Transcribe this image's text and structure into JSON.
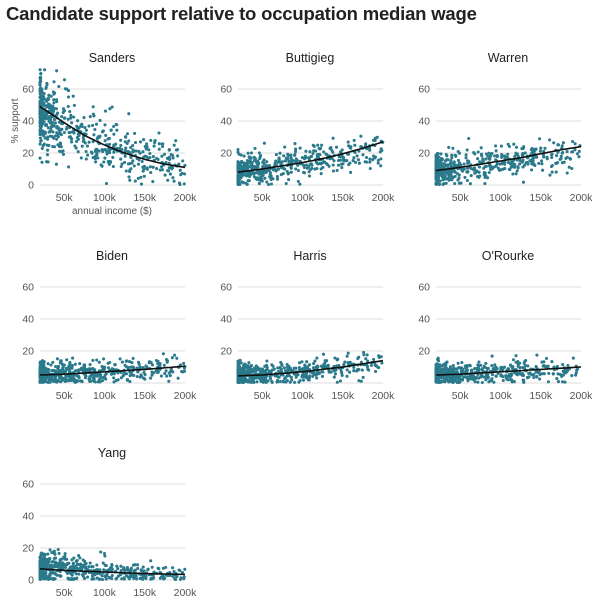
{
  "title": "Candidate support relative to occupation median wage",
  "colors": {
    "dots": "#2a7a8c",
    "trend_line": "#111111",
    "grid": "#dcdcdc"
  },
  "chart_data": [
    {
      "type": "scatter",
      "title": "Sanders",
      "xlabel": "annual income ($)",
      "ylabel": "% support",
      "xlim": [
        20000,
        200000
      ],
      "ylim": [
        0,
        60
      ],
      "xticks": [
        "50k",
        "100k",
        "150k",
        "200k"
      ],
      "yticks": [
        "0",
        "20",
        "40",
        "60"
      ],
      "trend": [
        [
          20000,
          49
        ],
        [
          50000,
          39
        ],
        [
          75000,
          31
        ],
        [
          100000,
          25
        ],
        [
          125000,
          20
        ],
        [
          150000,
          16
        ],
        [
          175000,
          13
        ],
        [
          200000,
          11
        ]
      ],
      "cloud": [
        [
          20000,
          44,
          11
        ],
        [
          40000,
          40,
          11
        ],
        [
          65000,
          33,
          10
        ],
        [
          90000,
          27,
          9
        ],
        [
          120000,
          21,
          8
        ],
        [
          150000,
          17,
          7
        ],
        [
          180000,
          14,
          7
        ],
        [
          200000,
          12,
          7
        ]
      ],
      "n": 560
    },
    {
      "type": "scatter",
      "title": "Buttigieg",
      "xlabel": "",
      "ylabel": "",
      "xlim": [
        20000,
        200000
      ],
      "ylim": [
        0,
        60
      ],
      "xticks": [
        "50k",
        "100k",
        "150k",
        "200k"
      ],
      "yticks": [
        "20",
        "40",
        "60"
      ],
      "trend": [
        [
          20000,
          8
        ],
        [
          50000,
          10
        ],
        [
          75000,
          12
        ],
        [
          100000,
          14
        ],
        [
          125000,
          16.5
        ],
        [
          150000,
          19.5
        ],
        [
          175000,
          23
        ],
        [
          200000,
          27
        ]
      ],
      "cloud": [
        [
          20000,
          8,
          4.5
        ],
        [
          60000,
          11,
          5
        ],
        [
          100000,
          14,
          5
        ],
        [
          150000,
          18,
          5
        ],
        [
          200000,
          22,
          5
        ]
      ],
      "n": 520
    },
    {
      "type": "scatter",
      "title": "Warren",
      "xlabel": "",
      "ylabel": "",
      "xlim": [
        20000,
        200000
      ],
      "ylim": [
        0,
        60
      ],
      "xticks": [
        "50k",
        "100k",
        "150k",
        "200k"
      ],
      "yticks": [
        "20",
        "40",
        "60"
      ],
      "trend": [
        [
          20000,
          9
        ],
        [
          50000,
          11
        ],
        [
          75000,
          13
        ],
        [
          100000,
          15
        ],
        [
          125000,
          17
        ],
        [
          150000,
          19.5
        ],
        [
          175000,
          22
        ],
        [
          200000,
          24
        ]
      ],
      "cloud": [
        [
          20000,
          9,
          4.5
        ],
        [
          60000,
          12,
          5.5
        ],
        [
          100000,
          15,
          5
        ],
        [
          150000,
          18,
          5
        ],
        [
          200000,
          20,
          5
        ]
      ],
      "n": 520
    },
    {
      "type": "scatter",
      "title": "Biden",
      "xlabel": "",
      "ylabel": "",
      "xlim": [
        20000,
        200000
      ],
      "ylim": [
        0,
        60
      ],
      "xticks": [
        "50k",
        "100k",
        "150k",
        "200k"
      ],
      "yticks": [
        "20",
        "40",
        "60"
      ],
      "trend": [
        [
          20000,
          5
        ],
        [
          50000,
          5.5
        ],
        [
          100000,
          7
        ],
        [
          150000,
          8.5
        ],
        [
          200000,
          10.5
        ]
      ],
      "cloud": [
        [
          20000,
          5,
          3.5
        ],
        [
          60000,
          5.5,
          3.5
        ],
        [
          100000,
          7,
          3.5
        ],
        [
          150000,
          8,
          3.5
        ],
        [
          200000,
          10,
          3.5
        ]
      ],
      "n": 520
    },
    {
      "type": "scatter",
      "title": "Harris",
      "xlabel": "",
      "ylabel": "",
      "xlim": [
        20000,
        200000
      ],
      "ylim": [
        0,
        60
      ],
      "xticks": [
        "50k",
        "100k",
        "150k",
        "200k"
      ],
      "yticks": [
        "20",
        "40",
        "60"
      ],
      "trend": [
        [
          20000,
          4.5
        ],
        [
          50000,
          5
        ],
        [
          75000,
          6
        ],
        [
          100000,
          7
        ],
        [
          125000,
          8.5
        ],
        [
          150000,
          10
        ],
        [
          175000,
          12
        ],
        [
          200000,
          14
        ]
      ],
      "cloud": [
        [
          20000,
          5,
          3.5
        ],
        [
          60000,
          5.5,
          3.5
        ],
        [
          100000,
          7,
          3.5
        ],
        [
          150000,
          9,
          3.5
        ],
        [
          200000,
          11,
          3.5
        ]
      ],
      "n": 520
    },
    {
      "type": "scatter",
      "title": "O'Rourke",
      "xlabel": "",
      "ylabel": "",
      "xlim": [
        20000,
        200000
      ],
      "ylim": [
        0,
        60
      ],
      "xticks": [
        "50k",
        "100k",
        "150k",
        "200k"
      ],
      "yticks": [
        "20",
        "40",
        "60"
      ],
      "trend": [
        [
          20000,
          5
        ],
        [
          50000,
          5.5
        ],
        [
          100000,
          7
        ],
        [
          150000,
          8.5
        ],
        [
          200000,
          10
        ]
      ],
      "cloud": [
        [
          20000,
          5,
          3.5
        ],
        [
          60000,
          5.5,
          3.5
        ],
        [
          100000,
          7,
          3.5
        ],
        [
          150000,
          8,
          3.5
        ],
        [
          200000,
          9,
          3.5
        ]
      ],
      "n": 520
    },
    {
      "type": "scatter",
      "title": "Yang",
      "xlabel": "",
      "ylabel": "",
      "xlim": [
        20000,
        200000
      ],
      "ylim": [
        0,
        60
      ],
      "xticks": [
        "50k",
        "100k",
        "150k",
        "200k"
      ],
      "yticks": [
        "0",
        "20",
        "40",
        "60"
      ],
      "trend": [
        [
          20000,
          7
        ],
        [
          50000,
          6
        ],
        [
          100000,
          5
        ],
        [
          150000,
          4
        ],
        [
          200000,
          3.5
        ]
      ],
      "cloud": [
        [
          20000,
          7,
          4.5
        ],
        [
          50000,
          7,
          4.5
        ],
        [
          100000,
          5,
          3.5
        ],
        [
          150000,
          4,
          3
        ],
        [
          200000,
          3.5,
          2.5
        ]
      ],
      "n": 520
    }
  ]
}
